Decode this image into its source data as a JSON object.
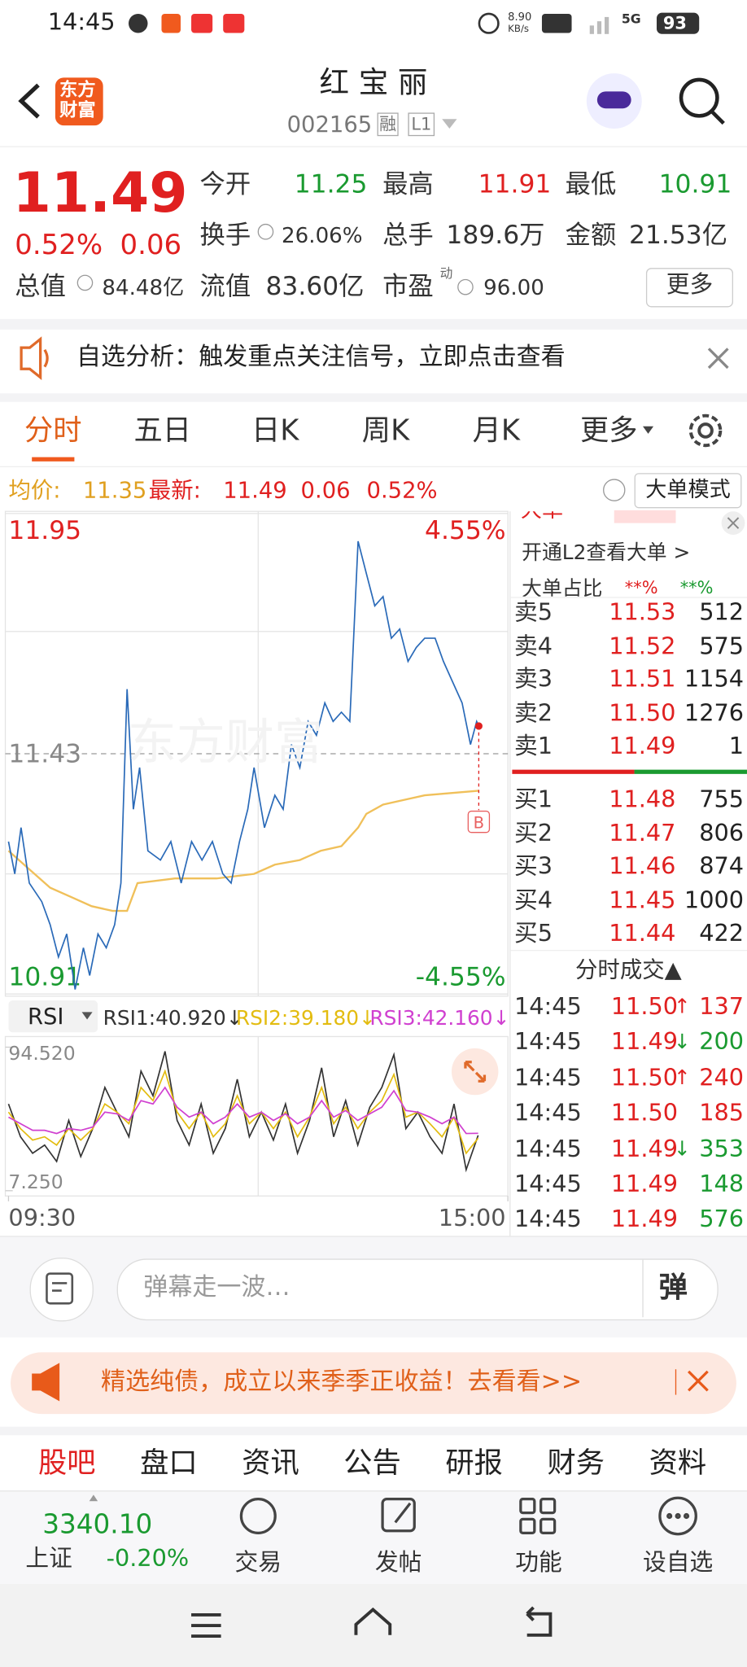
{
  "status_bar": {
    "time": "14:45",
    "net_speed": "8.90",
    "net_unit": "KB/s",
    "signal": "5G",
    "battery": "93"
  },
  "header": {
    "logo": [
      "东方",
      "财富"
    ],
    "title": "红 宝 丽",
    "code": "002165",
    "tags": [
      "融",
      "L1"
    ]
  },
  "quote": {
    "price": "11.49",
    "change_pct": "0.52%",
    "change": "0.06",
    "fields": [
      {
        "label": "今开",
        "value": "11.25"
      },
      {
        "label": "最高",
        "value": "11.91"
      },
      {
        "label": "最低",
        "value": "10.91"
      },
      {
        "label": "换手",
        "value": "26.06%"
      },
      {
        "label": "总手",
        "value": "189.6万"
      },
      {
        "label": "金额",
        "value": "21.53亿"
      },
      {
        "label": "总值",
        "value": "84.48亿"
      },
      {
        "label": "流值",
        "value": "83.60亿"
      },
      {
        "label": "市盈",
        "value": "96.00",
        "tag": "动"
      }
    ],
    "more_button": "更多"
  },
  "notice": {
    "text": "自选分析：触发重点关注信号，立即点击查看"
  },
  "tabs": {
    "items": [
      "分时",
      "五日",
      "日K",
      "周K",
      "月K",
      "更多"
    ],
    "active": 0
  },
  "intraday": {
    "avg_label": "均价:",
    "avg": "11.35",
    "latest_label": "最新:",
    "latest": "11.49",
    "change": "0.06",
    "change_pct": "0.52%",
    "mode_button": "大单模式",
    "watermark": "东方财富"
  },
  "chart_data": [
    {
      "type": "line",
      "xlim": [
        0,
        240
      ],
      "ylim": [
        10.91,
        11.95
      ],
      "yticks": [
        10.91,
        11.43,
        11.95
      ],
      "y2lim": [
        -4.55,
        4.55
      ],
      "y2ticks": [
        {
          "value": -4.55,
          "label": "-4.55%"
        },
        {
          "value": 4.55,
          "label": "4.55%"
        }
      ],
      "xticks": [
        {
          "value": 0,
          "label": "09:30"
        },
        {
          "value": 240,
          "label": "15:00"
        }
      ],
      "marker": "B",
      "series": [
        {
          "color": "#2a6ab8",
          "x": [
            0,
            3,
            6,
            10,
            16,
            20,
            24,
            28,
            32,
            36,
            39,
            43,
            47,
            51,
            54,
            57,
            60,
            63,
            67,
            73,
            78,
            83,
            88,
            93,
            98,
            103,
            107,
            111,
            115,
            118,
            123,
            128,
            132,
            136,
            140,
            144,
            148,
            152,
            156,
            160,
            164,
            168,
            172,
            176,
            180,
            184,
            188,
            192,
            196,
            200,
            205,
            209,
            213,
            218,
            222,
            225,
            226
          ],
          "values": [
            11.24,
            11.17,
            11.27,
            11.15,
            11.11,
            11.06,
            10.99,
            11.04,
            10.92,
            11.01,
            10.95,
            11.04,
            11.01,
            11.06,
            11.15,
            11.57,
            11.31,
            11.4,
            11.22,
            11.2,
            11.24,
            11.15,
            11.24,
            11.2,
            11.24,
            11.17,
            11.15,
            11.24,
            11.31,
            11.4,
            11.27,
            11.34,
            11.31,
            11.45,
            11.4,
            11.5,
            11.47,
            11.54,
            11.5,
            11.52,
            11.5,
            11.89,
            11.82,
            11.75,
            11.77,
            11.68,
            11.7,
            11.63,
            11.66,
            11.68,
            11.68,
            11.63,
            11.59,
            11.54,
            11.45,
            11.5,
            11.49
          ]
        },
        {
          "color": "#f0c05a",
          "x": [
            0,
            10,
            20,
            30,
            40,
            50,
            57,
            62,
            80,
            100,
            118,
            128,
            140,
            150,
            160,
            168,
            172,
            180,
            200,
            226
          ],
          "values": [
            11.22,
            11.18,
            11.14,
            11.12,
            11.1,
            11.09,
            11.09,
            11.15,
            11.16,
            11.16,
            11.17,
            11.19,
            11.2,
            11.22,
            11.23,
            11.27,
            11.3,
            11.32,
            11.34,
            11.35
          ]
        }
      ]
    },
    {
      "type": "line",
      "ylim": [
        7.25,
        94.52
      ],
      "yticks": [
        {
          "value": 7.25,
          "label": "7.250"
        },
        {
          "value": 94.52,
          "label": "94.520"
        }
      ],
      "selector": "RSI",
      "series": [
        {
          "name": "RSI1:40.920↓",
          "color": "#333333",
          "values": [
            60,
            40,
            30,
            35,
            25,
            50,
            28,
            45,
            70,
            55,
            40,
            80,
            65,
            92,
            50,
            35,
            60,
            30,
            45,
            75,
            40,
            55,
            38,
            60,
            30,
            50,
            82,
            40,
            62,
            35,
            58,
            70,
            90,
            45,
            55,
            40,
            30,
            60,
            20,
            40.92
          ]
        },
        {
          "name": "RSI2:39.180↓",
          "color": "#e3bc10",
          "values": [
            55,
            45,
            38,
            40,
            35,
            45,
            38,
            45,
            60,
            55,
            48,
            70,
            62,
            80,
            55,
            45,
            55,
            40,
            48,
            65,
            48,
            55,
            45,
            55,
            40,
            52,
            70,
            48,
            58,
            45,
            55,
            62,
            78,
            52,
            55,
            48,
            40,
            52,
            30,
            39.18
          ]
        },
        {
          "name": "RSI3:42.160↓",
          "color": "#d040d0",
          "values": [
            52,
            48,
            44,
            44,
            42,
            45,
            44,
            46,
            55,
            54,
            50,
            62,
            60,
            70,
            58,
            52,
            55,
            48,
            52,
            60,
            52,
            55,
            50,
            54,
            48,
            52,
            62,
            52,
            56,
            50,
            54,
            58,
            68,
            56,
            55,
            52,
            48,
            52,
            42,
            42.16
          ]
        }
      ]
    }
  ],
  "big_order": {
    "title": "大单",
    "link": "开通L2查看大单 >",
    "ratio_label": "大单占比",
    "ratio_values": [
      "**%",
      "**%"
    ]
  },
  "order_book": {
    "asks": [
      {
        "label": "卖5",
        "price": "11.53",
        "volume": "512"
      },
      {
        "label": "卖4",
        "price": "11.52",
        "volume": "575"
      },
      {
        "label": "卖3",
        "price": "11.51",
        "volume": "1154"
      },
      {
        "label": "卖2",
        "price": "11.50",
        "volume": "1276"
      },
      {
        "label": "卖1",
        "price": "11.49",
        "volume": "1"
      }
    ],
    "bids": [
      {
        "label": "买1",
        "price": "11.48",
        "volume": "755"
      },
      {
        "label": "买2",
        "price": "11.47",
        "volume": "806"
      },
      {
        "label": "买3",
        "price": "11.46",
        "volume": "874"
      },
      {
        "label": "买4",
        "price": "11.45",
        "volume": "1000"
      },
      {
        "label": "买5",
        "price": "11.44",
        "volume": "422"
      }
    ]
  },
  "trades": {
    "title": "分时成交▲",
    "rows": [
      {
        "time": "14:45",
        "price": "11.50",
        "arrow": "↑",
        "volume": "137",
        "color": "#e02020"
      },
      {
        "time": "14:45",
        "price": "11.49",
        "arrow": "↓",
        "volume": "200",
        "color": "#1a9a30"
      },
      {
        "time": "14:45",
        "price": "11.50",
        "arrow": "↑",
        "volume": "240",
        "color": "#e02020"
      },
      {
        "time": "14:45",
        "price": "11.50",
        "volume": "185",
        "color": "#e02020"
      },
      {
        "time": "14:45",
        "price": "11.49",
        "arrow": "↓",
        "volume": "353",
        "color": "#1a9a30"
      },
      {
        "time": "14:45",
        "price": "11.49",
        "volume": "148",
        "color": "#1a9a30"
      },
      {
        "time": "14:45",
        "price": "11.49",
        "volume": "576",
        "color": "#1a9a30"
      }
    ]
  },
  "comment": {
    "placeholder": "弹幕走一波…",
    "button": "弹"
  },
  "ad": {
    "text": "精选纯债，成立以来季季正收益！去看看>>"
  },
  "bottom_tabs": {
    "items": [
      "股吧",
      "盘口",
      "资讯",
      "公告",
      "研报",
      "财务",
      "资料"
    ],
    "active": 0
  },
  "index_bar": {
    "value": "3340.10",
    "name": "上证",
    "change": "-0.20%"
  },
  "actions": [
    "交易",
    "发帖",
    "功能",
    "设自选"
  ]
}
